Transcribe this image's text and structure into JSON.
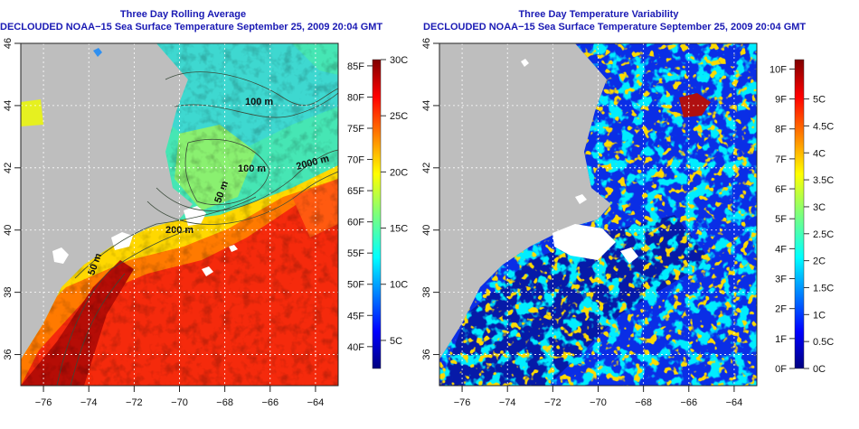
{
  "panels": [
    {
      "title": "Three Day Rolling Average",
      "subtitle": "DECLOUDED NOAA−15 Sea Surface Temperature September 25, 2009 20:04 GMT",
      "colorbar": {
        "quantity": "temperature",
        "range_c": [
          2.5,
          30
        ],
        "celsius_ticks": [
          "30C",
          "25C",
          "20C",
          "15C",
          "10C",
          "5C"
        ],
        "celsius_values": [
          30,
          25,
          20,
          15,
          10,
          5
        ],
        "fahrenheit_ticks": [
          "85F",
          "80F",
          "75F",
          "70F",
          "65F",
          "60F",
          "55F",
          "50F",
          "45F",
          "40F"
        ],
        "fahrenheit_values": [
          85,
          80,
          75,
          70,
          65,
          60,
          55,
          50,
          45,
          40
        ]
      },
      "contour_labels": [
        "100 m",
        "100 m",
        "50 m",
        "2000 m",
        "200 m",
        "50 m"
      ]
    },
    {
      "title": "Three Day Temperature Variability",
      "subtitle": "DECLOUDED NOAA−15 Sea Surface Temperature September 25, 2009 20:04 GMT",
      "colorbar": {
        "quantity": "variability",
        "range_c": [
          0,
          5.73
        ],
        "celsius_ticks": [
          "5C",
          "4.5C",
          "4C",
          "3.5C",
          "3C",
          "2.5C",
          "2C",
          "1.5C",
          "1C",
          "0.5C",
          "0C"
        ],
        "celsius_values": [
          5,
          4.5,
          4,
          3.5,
          3,
          2.5,
          2,
          1.5,
          1,
          0.5,
          0
        ],
        "fahrenheit_ticks": [
          "10F",
          "9F",
          "8F",
          "7F",
          "6F",
          "5F",
          "4F",
          "3F",
          "2F",
          "1F",
          "0F"
        ],
        "fahrenheit_values": [
          10,
          9,
          8,
          7,
          6,
          5,
          4,
          3,
          2,
          1,
          0
        ]
      }
    }
  ],
  "axes": {
    "lon_range": [
      -77,
      -63
    ],
    "lat_range": [
      35,
      46
    ],
    "lon_ticks": [
      "−76",
      "−74",
      "−72",
      "−70",
      "−68",
      "−66",
      "−64"
    ],
    "lon_values": [
      -76,
      -74,
      -72,
      -70,
      -68,
      -66,
      -64
    ],
    "lat_ticks": [
      "36",
      "38",
      "40",
      "42",
      "44",
      "46"
    ],
    "lat_values": [
      36,
      38,
      40,
      42,
      44,
      46
    ]
  },
  "colors": {
    "title": "#1a1ab4",
    "land": "#bebebe",
    "cloud": "#ffffff"
  }
}
